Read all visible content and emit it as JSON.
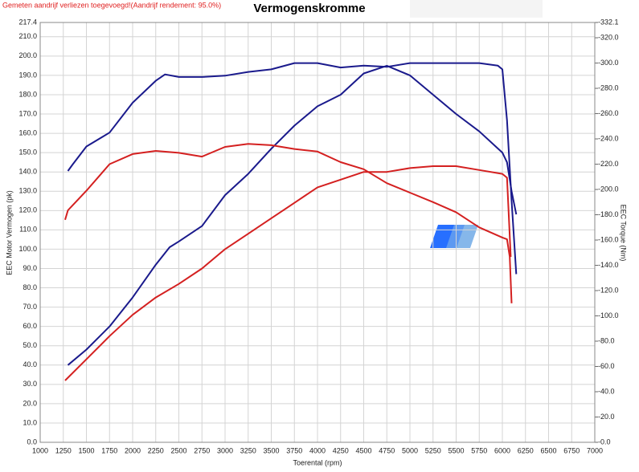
{
  "chart_data": {
    "type": "line",
    "title": "Vermogenskromme",
    "annotation": "Gemeten aandrijf verliezen toegevoegd!(Aandrijf rendement: 95.0%)",
    "xlabel": "Toerental (rpm)",
    "ylabel": "EEC Motor Vermogen (pk)",
    "y2label": "EEC Torque (Nm)",
    "grid": true,
    "xlim": [
      1000,
      7000
    ],
    "xticks": [
      1000,
      1250,
      1500,
      1750,
      2000,
      2250,
      2500,
      2750,
      3000,
      3250,
      3500,
      3750,
      4000,
      4250,
      4500,
      4750,
      5000,
      5250,
      5500,
      5750,
      6000,
      6250,
      6500,
      6750,
      7000
    ],
    "ylim": [
      0,
      217.4
    ],
    "yticks": [
      {
        "value": 0,
        "label": "0.0"
      },
      {
        "value": 10,
        "label": "10.0"
      },
      {
        "value": 20,
        "label": "20.0"
      },
      {
        "value": 30,
        "label": "30.0"
      },
      {
        "value": 40,
        "label": "40.0"
      },
      {
        "value": 50,
        "label": "50.0"
      },
      {
        "value": 60,
        "label": "60.0"
      },
      {
        "value": 70,
        "label": "70.0"
      },
      {
        "value": 80,
        "label": "80.0"
      },
      {
        "value": 90,
        "label": "90.0"
      },
      {
        "value": 100,
        "label": "100.0"
      },
      {
        "value": 110,
        "label": "110.0"
      },
      {
        "value": 120,
        "label": "120.0"
      },
      {
        "value": 130,
        "label": "130.0"
      },
      {
        "value": 140,
        "label": "140.0"
      },
      {
        "value": 150,
        "label": "150.0"
      },
      {
        "value": 160,
        "label": "160.0"
      },
      {
        "value": 170,
        "label": "170.0"
      },
      {
        "value": 180,
        "label": "180.0"
      },
      {
        "value": 190,
        "label": "190.0"
      },
      {
        "value": 200,
        "label": "200.0"
      },
      {
        "value": 210,
        "label": "210.0"
      },
      217.4
    ],
    "y2lim": [
      0,
      332.1
    ],
    "y2ticks": [
      {
        "value": 0,
        "label": "-0.0"
      },
      {
        "value": 20,
        "label": "-20.0"
      },
      {
        "value": 40,
        "label": "-40.0"
      },
      {
        "value": 60,
        "label": "-60.0"
      },
      {
        "value": 80,
        "label": "-80.0"
      },
      {
        "value": 100,
        "label": "-100.0"
      },
      {
        "value": 120,
        "label": "-120.0"
      },
      {
        "value": 140,
        "label": "-140.0"
      },
      {
        "value": 160,
        "label": "-160.0"
      },
      {
        "value": 180,
        "label": "-180.0"
      },
      {
        "value": 200,
        "label": "-200.0"
      },
      {
        "value": 220,
        "label": "-220.0"
      },
      {
        "value": 240,
        "label": "-240.0"
      },
      {
        "value": 260,
        "label": "-260.0"
      },
      {
        "value": 280,
        "label": "-280.0"
      },
      {
        "value": 300,
        "label": "-300.0"
      },
      {
        "value": 320,
        "label": "-320.0"
      },
      {
        "value": 332.1,
        "label": "-332.1"
      }
    ],
    "series": [
      {
        "color": "#1a1a8c",
        "axis": "y2",
        "x": [
          1300,
          1350,
          1500,
          1750,
          2000,
          2250,
          2350,
          2500,
          2750,
          3000,
          3250,
          3500,
          3750,
          4000,
          4250,
          4500,
          4750,
          5000,
          5500,
          5750,
          5950,
          6000,
          6050,
          6100,
          6150
        ],
        "values": [
          214.6,
          219.7,
          234,
          245,
          268.6,
          286,
          291,
          289,
          289,
          290,
          293,
          295,
          300,
          300,
          296.5,
          298,
          297,
          300,
          300,
          300,
          298,
          295,
          254.6,
          191,
          133
        ]
      },
      {
        "color": "#1a1a8c",
        "x": [
          1300,
          1500,
          1750,
          2000,
          2250,
          2400,
          2500,
          2750,
          3000,
          3250,
          3500,
          3750,
          4000,
          4250,
          4500,
          4750,
          5000,
          5250,
          5500,
          5750,
          6000,
          6050,
          6100,
          6150
        ],
        "values": [
          40,
          48,
          60,
          75,
          92,
          101,
          104,
          112,
          128,
          139,
          152,
          164,
          174,
          180,
          191,
          195,
          190,
          180,
          170,
          161,
          150,
          145,
          130,
          118
        ]
      },
      {
        "color": "#d42020",
        "axis": "y2",
        "x": [
          1270,
          1300,
          1500,
          1750,
          2000,
          2250,
          2500,
          2750,
          3000,
          3250,
          3500,
          3750,
          4000,
          4250,
          4500,
          4750,
          5000,
          5250,
          5500,
          5750,
          6000,
          6050,
          6080,
          6100
        ],
        "values": [
          176,
          183.5,
          199,
          220,
          228,
          230.5,
          229,
          226,
          233.7,
          236,
          235,
          232,
          230,
          221.6,
          216,
          205,
          197.5,
          190,
          182,
          170,
          162,
          160.6,
          146.7,
          110
        ]
      },
      {
        "color": "#d42020",
        "x": [
          1270,
          1500,
          1750,
          2000,
          2250,
          2500,
          2750,
          3000,
          3250,
          3500,
          3750,
          4000,
          4250,
          4500,
          4750,
          5000,
          5250,
          5500,
          5750,
          6000,
          6050,
          6090
        ],
        "values": [
          32,
          43,
          55,
          66,
          75,
          82,
          90,
          100,
          108,
          116,
          124,
          132,
          136,
          140,
          140,
          142,
          143,
          143,
          141,
          139,
          137,
          96
        ]
      }
    ]
  }
}
